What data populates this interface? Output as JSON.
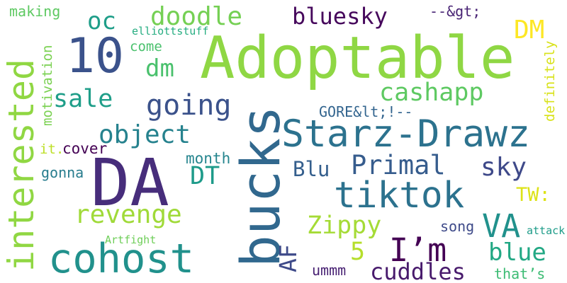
{
  "words": [
    {
      "id": "adoptable",
      "text": "Adoptable",
      "color": "#8fd744"
    },
    {
      "id": "da",
      "text": "DA",
      "color": "#472d7b"
    },
    {
      "id": "bucks",
      "text": "bucks",
      "color": "#31688e"
    },
    {
      "id": "starz-drawz",
      "text": "Starz-Drawz",
      "color": "#2c728e"
    },
    {
      "id": "ten",
      "text": "10",
      "color": "#3b528b"
    },
    {
      "id": "tiktok",
      "text": "tiktok",
      "color": "#2c728e"
    },
    {
      "id": "interested",
      "text": "interested",
      "color": "#90d743"
    },
    {
      "id": "cohost",
      "text": "cohost",
      "color": "#21918c"
    },
    {
      "id": "im",
      "text": "I’m",
      "color": "#440154"
    },
    {
      "id": "doodle",
      "text": "doodle",
      "color": "#75d054"
    },
    {
      "id": "bluesky",
      "text": "bluesky",
      "color": "#46085c"
    },
    {
      "id": "cashapp",
      "text": "cashapp",
      "color": "#5ec962"
    },
    {
      "id": "sale",
      "text": "sale",
      "color": "#1f9e89"
    },
    {
      "id": "going",
      "text": "going",
      "color": "#3b528b"
    },
    {
      "id": "object",
      "text": "object",
      "color": "#26828e"
    },
    {
      "id": "oc",
      "text": "oc",
      "color": "#1f9e89"
    },
    {
      "id": "dm-lower",
      "text": "dm",
      "color": "#4ac16d"
    },
    {
      "id": "dm-upper",
      "text": "DM",
      "color": "#fde725"
    },
    {
      "id": "revenge",
      "text": "revenge",
      "color": "#a0da39"
    },
    {
      "id": "primal",
      "text": "Primal",
      "color": "#365c8d"
    },
    {
      "id": "blu",
      "text": "Blu",
      "color": "#355f8d"
    },
    {
      "id": "sky",
      "text": "sky",
      "color": "#3e4989"
    },
    {
      "id": "dt",
      "text": "DT",
      "color": "#1e9b8a"
    },
    {
      "id": "zippy",
      "text": "Zippy",
      "color": "#a5db36"
    },
    {
      "id": "va",
      "text": "VA",
      "color": "#21918c"
    },
    {
      "id": "blue",
      "text": "blue",
      "color": "#22a884"
    },
    {
      "id": "cuddles",
      "text": "cuddles",
      "color": "#481a6c"
    },
    {
      "id": "five",
      "text": "5",
      "color": "#b5de2b"
    },
    {
      "id": "af",
      "text": "AF",
      "color": "#3e4a89"
    },
    {
      "id": "tw",
      "text": "TW:",
      "color": "#dde318"
    },
    {
      "id": "arrow",
      "text": "--&gt;",
      "color": "#482374"
    },
    {
      "id": "gore",
      "text": "GORE&lt;!--",
      "color": "#32648e"
    },
    {
      "id": "making",
      "text": "making",
      "color": "#5ec962"
    },
    {
      "id": "motivation",
      "text": "motivation",
      "color": "#7ad151"
    },
    {
      "id": "elliottstuff",
      "text": "elliottstuff",
      "color": "#26ad81"
    },
    {
      "id": "come",
      "text": "come",
      "color": "#4ac16d"
    },
    {
      "id": "definitely",
      "text": "definitely",
      "color": "#d8e219"
    },
    {
      "id": "it",
      "text": "it.",
      "color": "#bddf26"
    },
    {
      "id": "cover",
      "text": "cover",
      "color": "#440154"
    },
    {
      "id": "month",
      "text": "month",
      "color": "#25858e"
    },
    {
      "id": "gonna",
      "text": "gonna",
      "color": "#287d8e"
    },
    {
      "id": "song",
      "text": "song",
      "color": "#3e4a89"
    },
    {
      "id": "artfight",
      "text": "Artfight",
      "color": "#6ece58"
    },
    {
      "id": "attack",
      "text": "attack",
      "color": "#1e9c89"
    },
    {
      "id": "ummm",
      "text": "ummm",
      "color": "#482173"
    },
    {
      "id": "thats",
      "text": "that’s",
      "color": "#3dbc74"
    }
  ]
}
